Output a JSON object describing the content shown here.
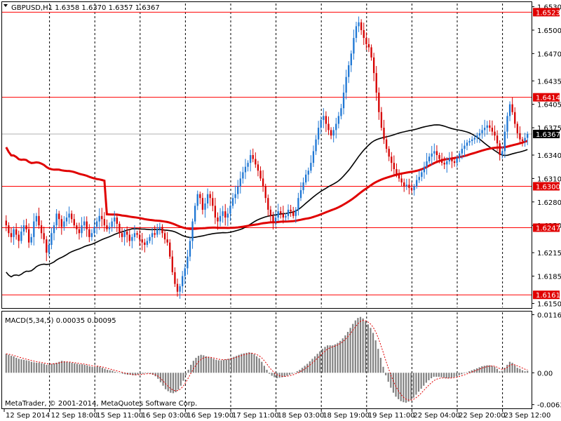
{
  "window": {
    "symbol_info": "GBPUSD,H1  1.6358 1.6370 1.6357 1.6367",
    "copyright": "MetaTrader, © 2001-2014, MetaQuotes Software Corp."
  },
  "chart_data": {
    "type": "candlestick",
    "symbol": "GBPUSD",
    "timeframe": "H1",
    "ohlc_current": {
      "open": 1.6358,
      "high": 1.637,
      "low": 1.6357,
      "close": 1.6367
    },
    "current_price_label": "1.6367",
    "y_ticks": [
      "1.6530",
      "1.6500",
      "1.6470",
      "1.6435",
      "1.6405",
      "1.6375",
      "1.6340",
      "1.6310",
      "1.6280",
      "1.6250",
      "1.6215",
      "1.6185",
      "1.6150"
    ],
    "ylim": [
      1.6145,
      1.6535
    ],
    "x_ticks": [
      "12 Sep 2014",
      "12 Sep 18:00",
      "15 Sep 11:00",
      "16 Sep 03:00",
      "16 Sep 19:00",
      "17 Sep 11:00",
      "18 Sep 03:00",
      "18 Sep 19:00",
      "19 Sep 11:00",
      "22 Sep 04:00",
      "22 Sep 20:00",
      "23 Sep 12:00"
    ],
    "horizontal_levels": [
      "1.6523",
      "1.6414",
      "1.6300",
      "1.6247",
      "1.6161"
    ],
    "closes": [
      1.625,
      1.624,
      1.6235,
      1.6245,
      1.6238,
      1.623,
      1.6242,
      1.625,
      1.6245,
      1.6228,
      1.6235,
      1.6255,
      1.6262,
      1.625,
      1.624,
      1.6232,
      1.6215,
      1.6225,
      1.624,
      1.625,
      1.6265,
      1.6258,
      1.6248,
      1.6255,
      1.626,
      1.6265,
      1.6258,
      1.625,
      1.6245,
      1.624,
      1.625,
      1.6255,
      1.6245,
      1.6235,
      1.624,
      1.6248,
      1.6255,
      1.6262,
      1.6258,
      1.625,
      1.6245,
      1.6248,
      1.6255,
      1.626,
      1.6252,
      1.624,
      1.6235,
      1.6242,
      1.6238,
      1.623,
      1.6235,
      1.624,
      1.6238,
      1.6232,
      1.6228,
      1.6225,
      1.623,
      1.6235,
      1.624,
      1.6238,
      1.6245,
      1.6248,
      1.624,
      1.6232,
      1.6228,
      1.621,
      1.619,
      1.6175,
      1.6165,
      1.6172,
      1.6185,
      1.6195,
      1.621,
      1.623,
      1.6255,
      1.6275,
      1.629,
      1.6285,
      1.627,
      1.6278,
      1.629,
      1.6285,
      1.6275,
      1.626,
      1.6255,
      1.6262,
      1.6268,
      1.626,
      1.6265,
      1.6275,
      1.6285,
      1.629,
      1.63,
      1.631,
      1.6318,
      1.6325,
      1.633,
      1.634,
      1.6335,
      1.6328,
      1.632,
      1.631,
      1.63,
      1.6285,
      1.627,
      1.6262,
      1.6255,
      1.626,
      1.6268,
      1.6265,
      1.626,
      1.6262,
      1.627,
      1.6268,
      1.6262,
      1.627,
      1.6285,
      1.6295,
      1.6305,
      1.6315,
      1.632,
      1.633,
      1.6345,
      1.636,
      1.6375,
      1.6385,
      1.639,
      1.638,
      1.6372,
      1.6365,
      1.6372,
      1.638,
      1.639,
      1.64,
      1.642,
      1.644,
      1.6455,
      1.647,
      1.649,
      1.6505,
      1.651,
      1.65,
      1.649,
      1.6482,
      1.6478,
      1.6465,
      1.6445,
      1.642,
      1.6395,
      1.6375,
      1.636,
      1.6348,
      1.6338,
      1.633,
      1.6322,
      1.6315,
      1.631,
      1.6305,
      1.63,
      1.6302,
      1.6298,
      1.6295,
      1.63,
      1.6308,
      1.6312,
      1.6318,
      1.6325,
      1.6332,
      1.6338,
      1.6342,
      1.6345,
      1.634,
      1.6335,
      1.633,
      1.6328,
      1.6332,
      1.6336,
      1.6332,
      1.633,
      1.6336,
      1.6342,
      1.6348,
      1.6352,
      1.6356,
      1.6358,
      1.636,
      1.6362,
      1.6365,
      1.6368,
      1.6372,
      1.6375,
      1.6378,
      1.6375,
      1.637,
      1.6365,
      1.6355,
      1.634,
      1.6345,
      1.637,
      1.639,
      1.6405,
      1.6395,
      1.638,
      1.6368,
      1.636,
      1.6358,
      1.6362,
      1.6367
    ],
    "macd": {
      "label": "MACD(5,34,5) 0.00035 0.00095",
      "y_ticks": [
        "0.01165",
        "0.00",
        "-0.00639"
      ],
      "ylim": [
        -0.007,
        0.012
      ],
      "histogram": [
        0.0038,
        0.0036,
        0.0034,
        0.0033,
        0.003,
        0.0028,
        0.0027,
        0.0026,
        0.0025,
        0.0024,
        0.0022,
        0.0021,
        0.002,
        0.002,
        0.0019,
        0.0018,
        0.0016,
        0.0016,
        0.0018,
        0.0019,
        0.002,
        0.0022,
        0.0024,
        0.0023,
        0.0022,
        0.0021,
        0.002,
        0.0019,
        0.0018,
        0.0017,
        0.0017,
        0.0016,
        0.0015,
        0.0013,
        0.0012,
        0.0012,
        0.0013,
        0.0012,
        0.001,
        0.0008,
        0.0006,
        0.0005,
        0.0004,
        0.0002,
        0.0001,
        0.0,
        -0.0002,
        -0.0003,
        -0.0004,
        -0.0004,
        -0.0005,
        -0.0005,
        -0.0004,
        -0.0003,
        -0.0002,
        -0.0001,
        -0.0001,
        -0.0002,
        -0.0004,
        -0.0007,
        -0.0012,
        -0.0019,
        -0.0026,
        -0.0033,
        -0.0037,
        -0.004,
        -0.0041,
        -0.0039,
        -0.0034,
        -0.0026,
        -0.0016,
        -0.0005,
        0.0006,
        0.0016,
        0.0024,
        0.003,
        0.0034,
        0.0036,
        0.0035,
        0.0033,
        0.0032,
        0.003,
        0.0028,
        0.0026,
        0.0025,
        0.0025,
        0.0026,
        0.0027,
        0.0028,
        0.003,
        0.0032,
        0.0034,
        0.0036,
        0.0038,
        0.0039,
        0.004,
        0.0041,
        0.004,
        0.0037,
        0.0033,
        0.0029,
        0.0022,
        0.0014,
        0.0006,
        -0.0002,
        -0.0006,
        -0.0009,
        -0.0011,
        -0.001,
        -0.0009,
        -0.0008,
        -0.0006,
        -0.0004,
        -0.0002,
        0.0,
        0.0003,
        0.0006,
        0.001,
        0.0014,
        0.0018,
        0.0023,
        0.0028,
        0.0033,
        0.0038,
        0.0043,
        0.0048,
        0.0052,
        0.0055,
        0.0055,
        0.0055,
        0.0057,
        0.006,
        0.0064,
        0.0069,
        0.0075,
        0.0082,
        0.009,
        0.0098,
        0.0105,
        0.011,
        0.0112,
        0.0109,
        0.0103,
        0.0097,
        0.009,
        0.008,
        0.0065,
        0.0048,
        0.003,
        0.0012,
        -0.0005,
        -0.0018,
        -0.003,
        -0.004,
        -0.0048,
        -0.0053,
        -0.0057,
        -0.0059,
        -0.006,
        -0.0058,
        -0.0055,
        -0.005,
        -0.0044,
        -0.0038,
        -0.0032,
        -0.0026,
        -0.002,
        -0.0015,
        -0.0011,
        -0.0008,
        -0.0008,
        -0.0008,
        -0.0009,
        -0.001,
        -0.0011,
        -0.0011,
        -0.001,
        -0.0009,
        -0.0007,
        -0.0005,
        -0.0003,
        -0.0001,
        0.0001,
        0.0003,
        0.0005,
        0.0007,
        0.0009,
        0.0011,
        0.0013,
        0.0014,
        0.0015,
        0.0015,
        0.0014,
        0.0012,
        0.0008,
        0.0003,
        0.0004,
        0.001,
        0.0016,
        0.0022,
        0.002,
        0.0015,
        0.001,
        0.0008,
        0.0005,
        0.0003,
        0.0004
      ]
    }
  }
}
